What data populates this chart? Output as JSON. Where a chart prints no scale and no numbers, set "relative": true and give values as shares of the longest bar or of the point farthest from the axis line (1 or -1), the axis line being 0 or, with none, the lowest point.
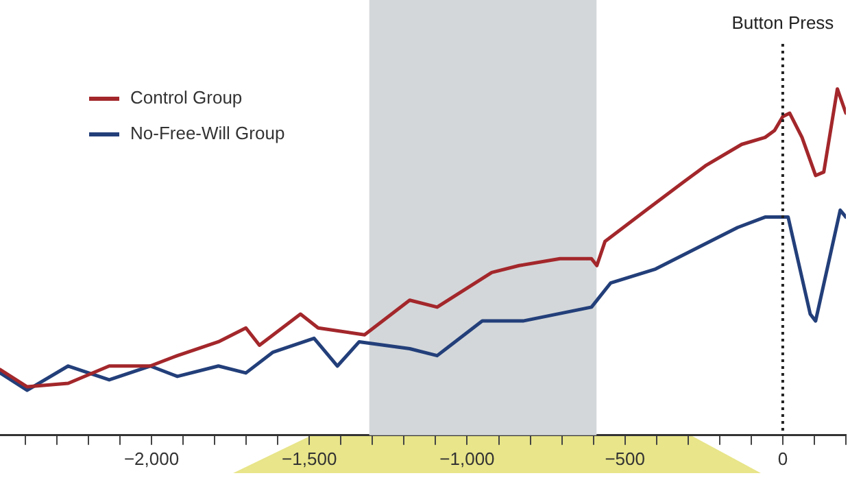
{
  "chart_data": {
    "type": "line",
    "relative": true,
    "legend": "top left",
    "grid": false,
    "marker": "none",
    "line_style": "solid",
    "tick_labels": "x",
    "xlim": [
      -2480,
      200
    ],
    "xticks": [
      {
        "value": -2400,
        "label": null
      },
      {
        "value": -2300,
        "label": null
      },
      {
        "value": -2200,
        "label": null
      },
      {
        "value": -2100,
        "label": null
      },
      {
        "value": -2000,
        "label": "−2,000"
      },
      {
        "value": -1900,
        "label": null
      },
      {
        "value": -1800,
        "label": null
      },
      {
        "value": -1700,
        "label": null
      },
      {
        "value": -1600,
        "label": null
      },
      {
        "value": -1500,
        "label": "−1,500"
      },
      {
        "value": -1400,
        "label": null
      },
      {
        "value": -1300,
        "label": null
      },
      {
        "value": -1200,
        "label": null
      },
      {
        "value": -1100,
        "label": null
      },
      {
        "value": -1000,
        "label": "−1,000"
      },
      {
        "value": -900,
        "label": null
      },
      {
        "value": -800,
        "label": null
      },
      {
        "value": -700,
        "label": null
      },
      {
        "value": -600,
        "label": null
      },
      {
        "value": -500,
        "label": "−500"
      },
      {
        "value": -400,
        "label": null
      },
      {
        "value": -300,
        "label": null
      },
      {
        "value": -200,
        "label": null
      },
      {
        "value": -100,
        "label": null
      },
      {
        "value": 0,
        "label": "0"
      },
      {
        "value": 100,
        "label": null
      },
      {
        "value": 200,
        "label": null
      }
    ],
    "series": [
      {
        "name": "Control Group",
        "color": "#a3272b",
        "x": [
          -2480,
          -2394,
          -2264,
          -2134,
          -2004,
          -1918,
          -1788,
          -1701,
          -1658,
          -1528,
          -1472,
          -1325,
          -1182,
          -1095,
          -922,
          -835,
          -706,
          -606,
          -589,
          -563,
          -433,
          -316,
          -242,
          -130,
          -56,
          -26,
          0,
          22,
          61,
          104,
          130,
          173,
          200
        ],
        "values": [
          0.19,
          0.14,
          0.15,
          0.2,
          0.2,
          0.23,
          0.27,
          0.31,
          0.26,
          0.35,
          0.31,
          0.29,
          0.39,
          0.37,
          0.47,
          0.49,
          0.51,
          0.51,
          0.49,
          0.56,
          0.65,
          0.73,
          0.78,
          0.84,
          0.86,
          0.88,
          0.92,
          0.93,
          0.86,
          0.75,
          0.76,
          1.0,
          0.93
        ]
      },
      {
        "name": "No-Free-Will Group",
        "color": "#233f7a",
        "x": [
          -2480,
          -2394,
          -2264,
          -2134,
          -2004,
          -1918,
          -1788,
          -1701,
          -1615,
          -1485,
          -1411,
          -1342,
          -1182,
          -1095,
          -952,
          -823,
          -606,
          -545,
          -403,
          -273,
          -143,
          -56,
          17,
          87,
          104,
          182,
          200
        ],
        "values": [
          0.18,
          0.13,
          0.2,
          0.16,
          0.2,
          0.17,
          0.2,
          0.18,
          0.24,
          0.28,
          0.2,
          0.27,
          0.25,
          0.23,
          0.33,
          0.33,
          0.37,
          0.44,
          0.48,
          0.54,
          0.6,
          0.63,
          0.63,
          0.35,
          0.33,
          0.65,
          0.63
        ]
      }
    ],
    "bands": [
      {
        "axis": "x",
        "from": -1310,
        "to": -590,
        "color": "#d3d7d9"
      }
    ],
    "ref_lines": [
      {
        "axis": "x",
        "value": 0,
        "label": "Button Press",
        "line_style": "dotted",
        "color": "#222222"
      }
    ]
  }
}
